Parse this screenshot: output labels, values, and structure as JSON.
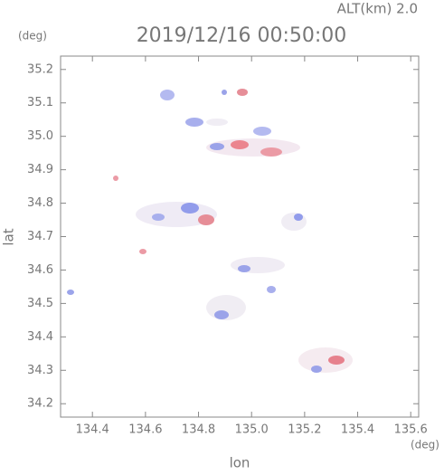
{
  "chart_data": {
    "type": "map",
    "title": "2019/12/16 00:50:00",
    "altitude_label": "ALT(km) 2.0",
    "y_unit": "(deg)",
    "x_unit": "(deg)",
    "xlabel": "lon",
    "ylabel": "lat",
    "xlim": [
      134.28,
      135.63
    ],
    "ylim": [
      34.16,
      35.24
    ],
    "xticks": [
      134.4,
      134.6,
      134.8,
      {
        "value": 135,
        "label": "135.0"
      },
      135.2,
      135.4,
      135.6
    ],
    "yticks": [
      34.2,
      34.3,
      34.4,
      34.5,
      34.6,
      34.7,
      34.8,
      34.9,
      {
        "value": 35,
        "label": "35.0"
      },
      35.1,
      35.2
    ]
  }
}
